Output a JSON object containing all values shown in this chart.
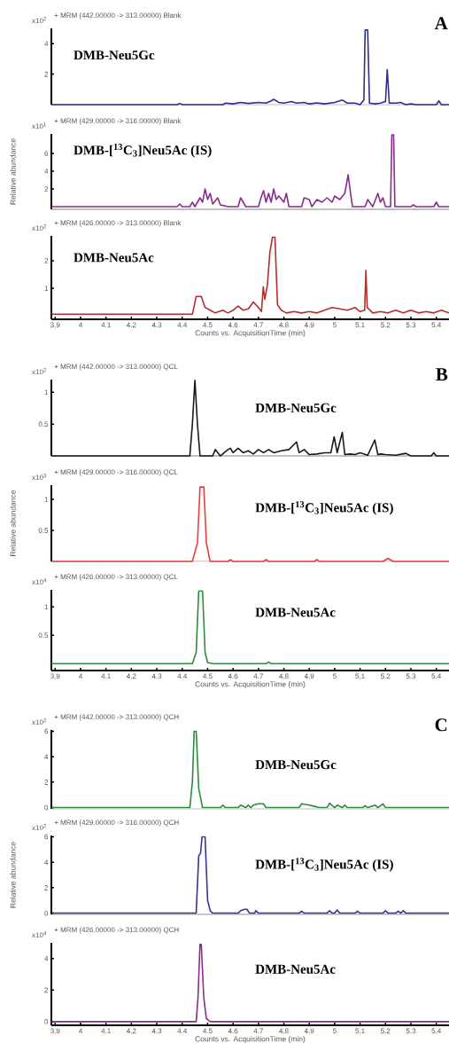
{
  "chart_data": [
    {
      "type": "line",
      "title": "+ MRM (442.00000 -> 313.00000) Blank",
      "annotations": [
        "x10$^{2}$",
        "DMB-Neu5Gc",
        "A"
      ],
      "xlim": [
        3.885,
        5.45
      ],
      "ylim": [
        0,
        5.0
      ],
      "yticks": [
        2,
        4
      ],
      "tick_labels": "y",
      "series": [
        {
          "color": "#2e2e8c",
          "x": [
            3.885,
            4.38,
            4.39,
            4.4,
            4.56,
            4.57,
            4.6,
            4.63,
            4.66,
            4.7,
            4.73,
            4.75,
            4.76,
            4.78,
            4.8,
            4.83,
            4.85,
            4.88,
            4.9,
            4.93,
            4.96,
            5.0,
            5.03,
            5.05,
            5.08,
            5.1,
            5.115,
            5.12,
            5.13,
            5.137,
            5.16,
            5.18,
            5.2,
            5.207,
            5.215,
            5.24,
            5.26,
            5.28,
            5.3,
            5.32,
            5.4,
            5.41,
            5.42,
            5.45
          ],
          "values": [
            0,
            0,
            0.08,
            0,
            0,
            0.1,
            0.05,
            0.15,
            0.08,
            0.15,
            0.1,
            0.25,
            0.35,
            0.15,
            0.1,
            0.2,
            0.1,
            0.15,
            0.05,
            0.12,
            0.05,
            0.15,
            0.3,
            0.1,
            0.1,
            0,
            0.3,
            4.9,
            4.9,
            0.1,
            0.05,
            0.1,
            0.2,
            2.3,
            0.1,
            0.1,
            0.15,
            0,
            0.05,
            0,
            0,
            0.25,
            0,
            0
          ]
        }
      ]
    },
    {
      "type": "line",
      "title": "+ MRM (429.00000 -> 316.00000) Blank",
      "ylabel": "Relative abundance",
      "annotations": [
        "x10$^{1}$",
        "DMB-[$^{13}$C$_{3}$]Neu5Ac (IS)"
      ],
      "xlim": [
        3.885,
        5.45
      ],
      "ylim": [
        -0.3,
        8.2
      ],
      "yticks": [
        2,
        4,
        6
      ],
      "tick_labels": "y",
      "series": [
        {
          "color": "#8b2b8f",
          "x": [
            3.885,
            4.38,
            4.39,
            4.4,
            4.43,
            4.44,
            4.45,
            4.47,
            4.48,
            4.49,
            4.5,
            4.51,
            4.52,
            4.54,
            4.55,
            4.58,
            4.62,
            4.63,
            4.65,
            4.7,
            4.71,
            4.72,
            4.73,
            4.74,
            4.75,
            4.76,
            4.77,
            4.78,
            4.8,
            4.81,
            4.82,
            4.87,
            4.88,
            4.9,
            4.91,
            4.93,
            4.95,
            4.97,
            4.99,
            5.0,
            5.02,
            5.04,
            5.053,
            5.065,
            5.07,
            5.12,
            5.13,
            5.15,
            5.17,
            5.18,
            5.19,
            5.2,
            5.22,
            5.225,
            5.232,
            5.237,
            5.3,
            5.31,
            5.32,
            5.39,
            5.4,
            5.41,
            5.45
          ],
          "values": [
            0,
            0,
            0.3,
            0,
            0,
            0.5,
            0,
            1.0,
            0.5,
            2.0,
            0.8,
            1.5,
            0.3,
            1.0,
            0.2,
            0,
            0,
            1.0,
            0,
            0,
            1.0,
            1.8,
            0.5,
            1.5,
            0.5,
            2.0,
            0.8,
            1.2,
            0.5,
            1.5,
            0,
            0,
            1.0,
            0.8,
            0,
            0.8,
            0.5,
            1.0,
            0.5,
            1.2,
            0.8,
            1.5,
            3.6,
            1.0,
            0,
            0,
            0.8,
            0,
            1.5,
            0.5,
            1.0,
            0,
            0,
            8.1,
            8.1,
            0,
            0,
            0.2,
            0,
            0,
            0.5,
            0,
            0
          ]
        }
      ]
    },
    {
      "type": "line",
      "title": "+ MRM (426.00000 -> 313.00000) Blank",
      "xlabel": "Counts vs. AcquisitionTime (min)",
      "annotations": [
        "x10$^{2}$",
        "DMB-Neu5Ac"
      ],
      "xlim": [
        3.885,
        5.45
      ],
      "ylim": [
        -0.13,
        2.9
      ],
      "xticks": [
        3.9,
        4,
        4.1,
        4.2,
        4.3,
        4.4,
        4.5,
        4.6,
        4.7,
        4.8,
        4.9,
        5,
        5.1,
        5.2,
        5.3,
        5.4
      ],
      "yticks": [
        1,
        2
      ],
      "series": [
        {
          "color": "#b0302c",
          "x": [
            3.885,
            4.44,
            4.455,
            4.475,
            4.49,
            4.51,
            4.53,
            4.56,
            4.58,
            4.6,
            4.62,
            4.64,
            4.66,
            4.68,
            4.7,
            4.712,
            4.719,
            4.725,
            4.735,
            4.745,
            4.755,
            4.765,
            4.775,
            4.79,
            4.81,
            4.84,
            4.87,
            4.9,
            4.93,
            4.96,
            4.99,
            5.02,
            5.05,
            5.08,
            5.1,
            5.118,
            5.123,
            5.128,
            5.15,
            5.18,
            5.21,
            5.24,
            5.27,
            5.3,
            5.33,
            5.36,
            5.39,
            5.42,
            5.45
          ],
          "values": [
            0.05,
            0.05,
            0.7,
            0.7,
            0.3,
            0.2,
            0.1,
            0.2,
            0.1,
            0.2,
            0.35,
            0.2,
            0.25,
            0.5,
            0.3,
            0.15,
            1.05,
            0.6,
            1.1,
            2.3,
            2.85,
            2.85,
            0.4,
            0.2,
            0.1,
            0.15,
            0.1,
            0.15,
            0.1,
            0.2,
            0.3,
            0.25,
            0.2,
            0.3,
            0.15,
            0.2,
            1.65,
            0.3,
            0.1,
            0.15,
            0.1,
            0.2,
            0.1,
            0.2,
            0.1,
            0.15,
            0.1,
            0.2,
            0.1
          ]
        }
      ]
    },
    {
      "type": "line",
      "title": "+ MRM (442.00000 -> 313.00000) QCL",
      "annotations": [
        "x10$^{2}$",
        "DMB-Neu5Gc",
        "B"
      ],
      "xlim": [
        3.885,
        5.45
      ],
      "ylim": [
        0,
        1.2
      ],
      "yticks": [
        0.5,
        1
      ],
      "tick_labels": "y",
      "series": [
        {
          "color": "#1a1a1a",
          "x": [
            3.885,
            4.43,
            4.44,
            4.45,
            4.46,
            4.47,
            4.52,
            4.53,
            4.54,
            4.55,
            4.58,
            4.59,
            4.6,
            4.62,
            4.64,
            4.66,
            4.68,
            4.7,
            4.72,
            4.74,
            4.76,
            4.79,
            4.82,
            4.85,
            4.86,
            4.88,
            4.9,
            4.93,
            4.96,
            4.985,
            4.998,
            5.01,
            5.03,
            5.04,
            5.06,
            5.08,
            5.1,
            5.13,
            5.158,
            5.17,
            5.18,
            5.2,
            5.24,
            5.28,
            5.3,
            5.38,
            5.39,
            5.4,
            5.45
          ],
          "values": [
            0,
            0,
            0.5,
            1.19,
            0.5,
            0,
            0,
            0.1,
            0.05,
            0,
            0.1,
            0.12,
            0.05,
            0.12,
            0.05,
            0.08,
            0.03,
            0.1,
            0.05,
            0.1,
            0.05,
            0.08,
            0.1,
            0.22,
            0.05,
            0.1,
            0.02,
            0.03,
            0.05,
            0.05,
            0.3,
            0.05,
            0.37,
            0.02,
            0.03,
            0.02,
            0.05,
            0.01,
            0.25,
            0.02,
            0.03,
            0.02,
            0.01,
            0.04,
            0,
            0,
            0.05,
            0,
            0
          ]
        }
      ]
    },
    {
      "type": "line",
      "title": "+ MRM (429.00000 -> 316.00000) QCL",
      "ylabel": "Relative abundance",
      "annotations": [
        "x10$^{3}$",
        "DMB-[$^{13}$C$_{3}$]Neu5Ac (IS)"
      ],
      "xlim": [
        3.885,
        5.45
      ],
      "ylim": [
        0,
        1.23
      ],
      "yticks": [
        0.5,
        1
      ],
      "tick_labels": "y",
      "series": [
        {
          "color": "#e8403a",
          "x": [
            3.885,
            4.44,
            4.46,
            4.47,
            4.485,
            4.495,
            4.51,
            4.58,
            4.59,
            4.6,
            4.72,
            4.73,
            4.74,
            4.92,
            4.93,
            4.94,
            5.19,
            5.21,
            5.23,
            5.45
          ],
          "values": [
            0,
            0,
            0.3,
            1.2,
            1.2,
            0.3,
            0,
            0,
            0.03,
            0,
            0,
            0.03,
            0,
            0,
            0.03,
            0,
            0,
            0.05,
            0,
            0
          ]
        }
      ]
    },
    {
      "type": "line",
      "title": "+ MRM (426.00000 -> 313.00000) QCL",
      "xlabel": "Counts vs. AcquisitionTime (min)",
      "annotations": [
        "x10$^{4}$",
        "DMB-Neu5Ac"
      ],
      "xlim": [
        3.885,
        5.45
      ],
      "ylim": [
        -0.12,
        1.3
      ],
      "xticks": [
        3.9,
        4,
        4.1,
        4.2,
        4.3,
        4.4,
        4.5,
        4.6,
        4.7,
        4.8,
        4.9,
        5,
        5.1,
        5.2,
        5.3,
        5.4
      ],
      "yticks": [
        0.5,
        1
      ],
      "series": [
        {
          "color": "#2e8b3a",
          "x": [
            3.885,
            4.44,
            4.455,
            4.465,
            4.48,
            4.49,
            4.5,
            4.52,
            4.73,
            4.74,
            4.75,
            5.45
          ],
          "values": [
            0,
            0,
            0.2,
            1.28,
            1.28,
            0.2,
            0.02,
            0,
            0,
            0.03,
            0,
            0
          ]
        }
      ]
    },
    {
      "type": "line",
      "title": "+ MRM (442.00000 -> 313.00000) QCH",
      "annotations": [
        "x10$^{2}$",
        "DMB-Neu5Gc",
        "C"
      ],
      "xlim": [
        3.885,
        5.45
      ],
      "ylim": [
        -0.1,
        6.1
      ],
      "yticks": [
        0,
        2,
        4,
        6
      ],
      "tick_labels": "y",
      "series": [
        {
          "color": "#2a8a3a",
          "x": [
            3.885,
            4.43,
            4.44,
            4.447,
            4.455,
            4.465,
            4.48,
            4.55,
            4.56,
            4.57,
            4.62,
            4.63,
            4.65,
            4.66,
            4.67,
            4.68,
            4.7,
            4.72,
            4.73,
            4.86,
            4.87,
            4.9,
            4.92,
            4.94,
            4.97,
            4.98,
            5.0,
            5.01,
            5.03,
            5.04,
            5.05,
            5.11,
            5.12,
            5.13,
            5.16,
            5.17,
            5.19,
            5.2,
            5.45
          ],
          "values": [
            0,
            0,
            2.0,
            6.0,
            6.0,
            1.5,
            0,
            0,
            0.2,
            0,
            0,
            0.2,
            0,
            0.2,
            0,
            0.2,
            0.3,
            0.3,
            0,
            0,
            0.3,
            0.2,
            0.1,
            0,
            0,
            0.35,
            0,
            0.2,
            0,
            0.2,
            0,
            0,
            0.15,
            0,
            0.2,
            0,
            0.3,
            0,
            0
          ]
        }
      ]
    },
    {
      "type": "line",
      "title": "+ MRM (429.00000 -> 316.00000) QCH",
      "ylabel": "Relative abundance",
      "annotations": [
        "x10$^{2}$",
        "DMB-[$^{13}$C$_{3}$]Neu5Ac (IS)"
      ],
      "xlim": [
        3.885,
        5.45
      ],
      "ylim": [
        -0.1,
        6.1
      ],
      "yticks": [
        0,
        2,
        4,
        6
      ],
      "tick_labels": "y",
      "series": [
        {
          "color": "#35358f",
          "x": [
            3.885,
            4.455,
            4.465,
            4.472,
            4.478,
            4.49,
            4.5,
            4.51,
            4.52,
            4.62,
            4.63,
            4.645,
            4.655,
            4.665,
            4.685,
            4.69,
            4.7,
            4.86,
            4.87,
            4.88,
            4.97,
            4.98,
            4.99,
            5.0,
            5.01,
            5.02,
            5.08,
            5.09,
            5.1,
            5.19,
            5.2,
            5.21,
            5.24,
            5.25,
            5.26,
            5.27,
            5.28,
            5.45
          ],
          "values": [
            0,
            0,
            4.5,
            4.7,
            6.0,
            6.0,
            1.0,
            0.2,
            0,
            0,
            0.2,
            0.3,
            0.3,
            0,
            0,
            0.2,
            0,
            0,
            0.15,
            0,
            0,
            0.2,
            0,
            0,
            0.25,
            0,
            0,
            0.15,
            0,
            0,
            0.2,
            0,
            0,
            0.15,
            0,
            0.2,
            0,
            0
          ]
        }
      ]
    },
    {
      "type": "line",
      "title": "+ MRM (426.00000 -> 313.00000) QCH",
      "xlabel": "Counts vs. AcquisitionTime (min)",
      "annotations": [
        "x10$^{4}$",
        "DMB-Neu5Ac"
      ],
      "xlim": [
        3.885,
        5.45
      ],
      "ylim": [
        -0.23,
        5.0
      ],
      "xticks": [
        3.9,
        4,
        4.1,
        4.2,
        4.3,
        4.4,
        4.5,
        4.6,
        4.7,
        4.8,
        4.9,
        5,
        5.1,
        5.2,
        5.3,
        5.4
      ],
      "yticks": [
        0,
        2,
        4
      ],
      "series": [
        {
          "color": "#8b2a8b",
          "x": [
            3.885,
            4.455,
            4.462,
            4.47,
            4.475,
            4.485,
            4.495,
            4.51,
            5.45
          ],
          "values": [
            0,
            0,
            1.5,
            4.9,
            4.9,
            1.5,
            0.2,
            0,
            0
          ]
        }
      ]
    }
  ]
}
